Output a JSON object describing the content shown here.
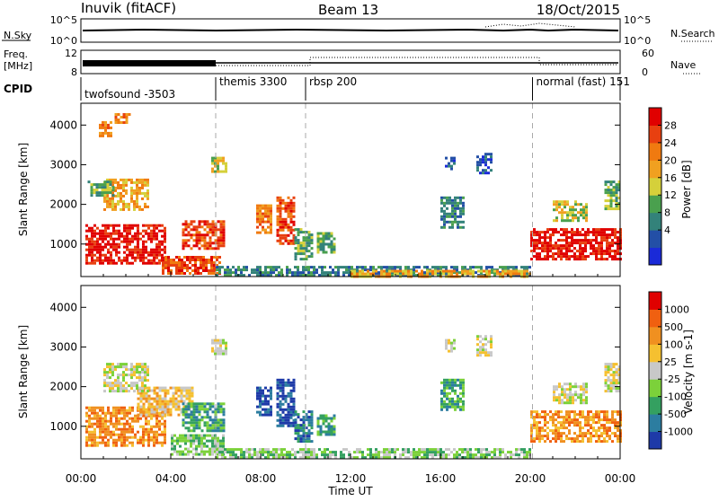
{
  "header": {
    "station": "Inuvik (fitACF)",
    "beam": "Beam 13",
    "date": "18/Oct/2015"
  },
  "status_panel": {
    "nsky_label": "N.Sky",
    "nsky_ticks": [
      "10^5",
      "10^0"
    ],
    "nsearch_label": "N.Search",
    "nsearch_ticks": [
      "10^5",
      "10^0"
    ],
    "freq_label_line1": "Freq.",
    "freq_label_line2": "[MHz]",
    "freq_ticks": [
      "12",
      "8"
    ],
    "nave_label": "Nave",
    "nave_ticks": [
      "60",
      "0"
    ],
    "cpid_label": "CPID"
  },
  "cpid_segments": [
    {
      "name": "twofsound -3503",
      "start_hour": 0
    },
    {
      "name": "themis 3300",
      "start_hour": 6
    },
    {
      "name": "rbsp 200",
      "start_hour": 10
    },
    {
      "name": "normal (fast) 151",
      "start_hour": 20.1
    }
  ],
  "chart_data": [
    {
      "type": "heatmap",
      "name": "power",
      "ylabel": "Slant Range [km]",
      "yticks": [
        1000,
        2000,
        3000,
        4000
      ],
      "ylim": [
        180,
        4550
      ],
      "xlim_hours": [
        0,
        24
      ],
      "colorbar_label": "Power [dB]",
      "colorbar_ticks": [
        "28",
        "24",
        "20",
        "16",
        "12",
        "8",
        "4"
      ],
      "colors": [
        "#1a2ad8",
        "#234fa6",
        "#33827a",
        "#4aa04e",
        "#d5d03a",
        "#f0a020",
        "#f07a10",
        "#e84010",
        "#e00000"
      ],
      "regions": [
        {
          "x0": 0.2,
          "x1": 3.8,
          "y0": 500,
          "y1": 1500,
          "level": 8
        },
        {
          "x0": 1.0,
          "x1": 3.0,
          "y0": 1900,
          "y1": 2650,
          "level": 5
        },
        {
          "x0": 0.3,
          "x1": 1.5,
          "y0": 2200,
          "y1": 2600,
          "level": 3
        },
        {
          "x0": 0.8,
          "x1": 1.3,
          "y0": 3700,
          "y1": 4100,
          "level": 6
        },
        {
          "x0": 1.5,
          "x1": 2.2,
          "y0": 4050,
          "y1": 4300,
          "level": 6
        },
        {
          "x0": 3.6,
          "x1": 6.2,
          "y0": 250,
          "y1": 700,
          "level": 7
        },
        {
          "x0": 4.5,
          "x1": 6.4,
          "y0": 900,
          "y1": 1600,
          "level": 7
        },
        {
          "x0": 5.8,
          "x1": 6.5,
          "y0": 2800,
          "y1": 3200,
          "level": 4
        },
        {
          "x0": 7.8,
          "x1": 8.5,
          "y0": 1300,
          "y1": 2000,
          "level": 6
        },
        {
          "x0": 8.7,
          "x1": 9.5,
          "y0": 1000,
          "y1": 2200,
          "level": 7
        },
        {
          "x0": 9.5,
          "x1": 10.3,
          "y0": 600,
          "y1": 1400,
          "level": 3
        },
        {
          "x0": 10.5,
          "x1": 11.3,
          "y0": 800,
          "y1": 1300,
          "level": 3
        },
        {
          "x0": 16.0,
          "x1": 17.0,
          "y0": 1400,
          "y1": 2200,
          "level": 2
        },
        {
          "x0": 16.2,
          "x1": 16.6,
          "y0": 2900,
          "y1": 3200,
          "level": 1
        },
        {
          "x0": 17.6,
          "x1": 18.3,
          "y0": 2800,
          "y1": 3300,
          "level": 1
        },
        {
          "x0": 20.0,
          "x1": 24.0,
          "y0": 600,
          "y1": 1400,
          "level": 8
        },
        {
          "x0": 21.0,
          "x1": 22.5,
          "y0": 1600,
          "y1": 2100,
          "level": 4
        },
        {
          "x0": 23.3,
          "x1": 24.0,
          "y0": 1900,
          "y1": 2600,
          "level": 3
        },
        {
          "x0": 6.0,
          "x1": 20.0,
          "y0": 200,
          "y1": 450,
          "level": 2
        },
        {
          "x0": 12.0,
          "x1": 20.0,
          "y0": 200,
          "y1": 350,
          "level": 5
        }
      ]
    },
    {
      "type": "heatmap",
      "name": "velocity",
      "ylabel": "Slant Range [km]",
      "yticks": [
        1000,
        2000,
        3000,
        4000
      ],
      "ylim": [
        180,
        4550
      ],
      "xlim_hours": [
        0,
        24
      ],
      "xticks": [
        "00:00",
        "04:00",
        "08:00",
        "12:00",
        "16:00",
        "20:00",
        "00:00"
      ],
      "xlabel": "Time UT",
      "colorbar_label": "Velocity [m s-1]",
      "colorbar_ticks": [
        "1000",
        "500",
        "100",
        "25",
        "-25",
        "-100",
        "-500",
        "-1000"
      ],
      "colors": [
        "#1e3aa8",
        "#2c7da0",
        "#34a060",
        "#7cd13a",
        "#c8c8c8",
        "#f5c030",
        "#f09020",
        "#f06010",
        "#e00000"
      ],
      "regions": [
        {
          "x0": 0.2,
          "x1": 3.8,
          "y0": 500,
          "y1": 1500,
          "level": 6
        },
        {
          "x0": 2.5,
          "x1": 5.0,
          "y0": 1300,
          "y1": 2000,
          "level": 5
        },
        {
          "x0": 1.0,
          "x1": 3.0,
          "y0": 1900,
          "y1": 2600,
          "level": 4
        },
        {
          "x0": 4.0,
          "x1": 6.3,
          "y0": 300,
          "y1": 800,
          "level": 3
        },
        {
          "x0": 4.5,
          "x1": 6.4,
          "y0": 900,
          "y1": 1600,
          "level": 2
        },
        {
          "x0": 5.8,
          "x1": 6.5,
          "y0": 2800,
          "y1": 3200,
          "level": 4
        },
        {
          "x0": 7.8,
          "x1": 8.5,
          "y0": 1300,
          "y1": 2000,
          "level": 0
        },
        {
          "x0": 8.7,
          "x1": 9.5,
          "y0": 1000,
          "y1": 2200,
          "level": 0
        },
        {
          "x0": 9.5,
          "x1": 10.3,
          "y0": 600,
          "y1": 1400,
          "level": 1
        },
        {
          "x0": 10.5,
          "x1": 11.3,
          "y0": 800,
          "y1": 1300,
          "level": 2
        },
        {
          "x0": 16.0,
          "x1": 17.0,
          "y0": 1400,
          "y1": 2200,
          "level": 2
        },
        {
          "x0": 16.2,
          "x1": 16.6,
          "y0": 2900,
          "y1": 3200,
          "level": 4
        },
        {
          "x0": 17.6,
          "x1": 18.3,
          "y0": 2800,
          "y1": 3300,
          "level": 4
        },
        {
          "x0": 20.0,
          "x1": 24.0,
          "y0": 600,
          "y1": 1400,
          "level": 6
        },
        {
          "x0": 21.0,
          "x1": 22.5,
          "y0": 1600,
          "y1": 2100,
          "level": 4
        },
        {
          "x0": 23.3,
          "x1": 24.0,
          "y0": 1900,
          "y1": 2600,
          "level": 4
        },
        {
          "x0": 6.0,
          "x1": 20.0,
          "y0": 200,
          "y1": 450,
          "level": 3
        }
      ]
    }
  ]
}
